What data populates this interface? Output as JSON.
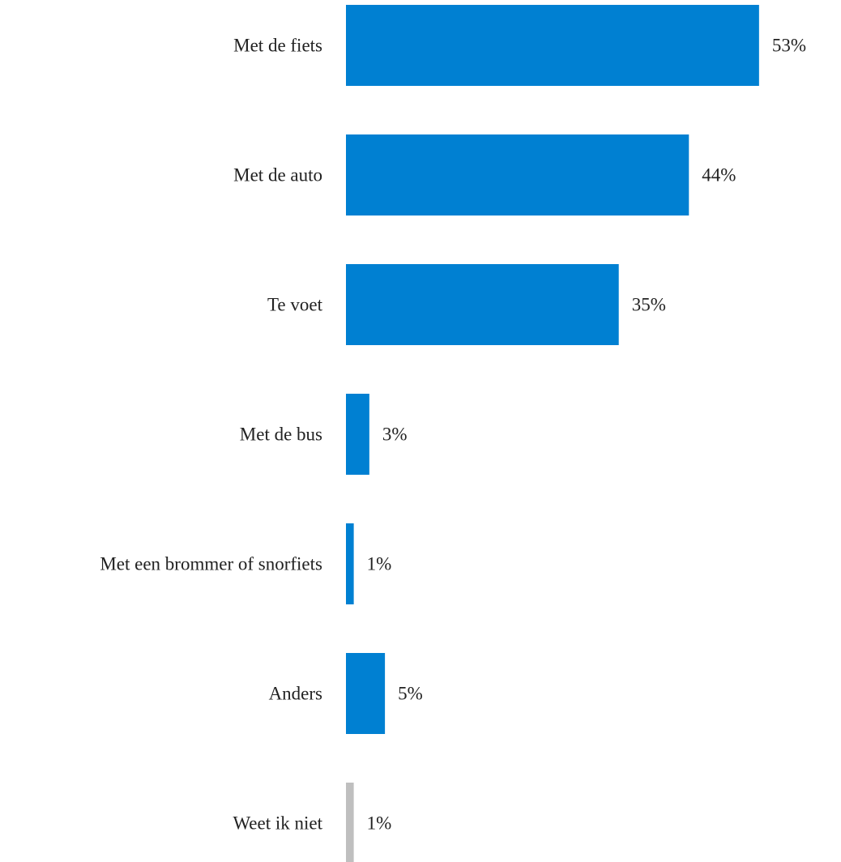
{
  "chart_data": {
    "type": "bar",
    "orientation": "horizontal",
    "categories": [
      "Met de fiets",
      "Met de auto",
      "Te voet",
      "Met de bus",
      "Met een brommer of snorfiets",
      "Anders",
      "Weet ik niet"
    ],
    "values": [
      53,
      44,
      35,
      3,
      1,
      5,
      1
    ],
    "value_labels": [
      "53%",
      "44%",
      "35%",
      "3%",
      "1%",
      "5%",
      "1%"
    ],
    "bar_colors": [
      "#0080d2",
      "#0080d2",
      "#0080d2",
      "#0080d2",
      "#0080d2",
      "#0080d2",
      "#bfbfbf"
    ],
    "xlim": [
      0,
      55
    ],
    "grid": false,
    "legend": "none"
  }
}
